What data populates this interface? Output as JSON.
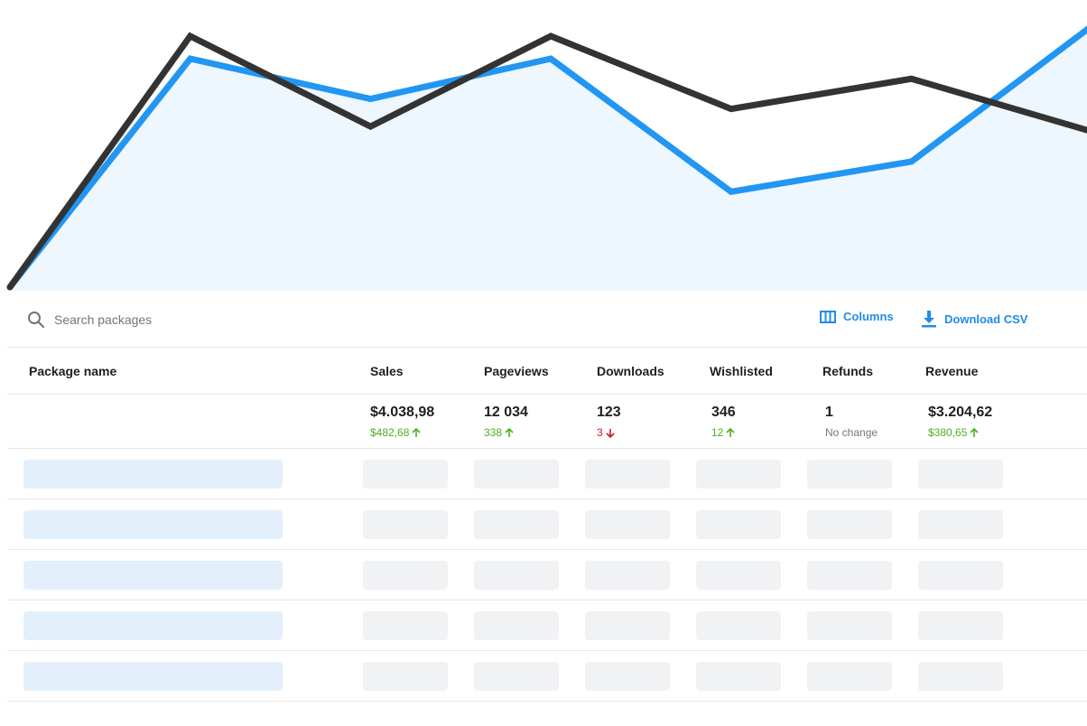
{
  "chart_data": {
    "type": "line",
    "x": [
      0,
      1,
      2,
      3,
      4,
      5,
      6
    ],
    "ylim": [
      0,
      100
    ],
    "series": [
      {
        "color": "#2196f3",
        "fill": "#eef6fe",
        "values": [
          0,
          91,
          75,
          91,
          38,
          50,
          104
        ]
      },
      {
        "color": "#333333",
        "values": [
          0,
          100,
          64,
          100,
          71,
          83,
          62
        ]
      }
    ]
  },
  "toolbar": {
    "search_placeholder": "Search packages",
    "search_icon": "search-icon",
    "columns_label": "Columns",
    "columns_icon": "columns-icon",
    "download_label": "Download CSV",
    "download_icon": "download-icon",
    "accent": "#1f8ce8"
  },
  "table": {
    "headers": {
      "name": "Package name",
      "sales": "Sales",
      "pageviews": "Pageviews",
      "downloads": "Downloads",
      "wishlisted": "Wishlisted",
      "refunds": "Refunds",
      "revenue": "Revenue"
    },
    "totals": {
      "sales": {
        "value": "$4.038,98",
        "delta": "$482,68",
        "trend": "up"
      },
      "pageviews": {
        "value": "12 034",
        "delta": "338",
        "trend": "up"
      },
      "downloads": {
        "value": "123",
        "delta": "3",
        "trend": "down"
      },
      "wishlisted": {
        "value": "346",
        "delta": "12",
        "trend": "up"
      },
      "refunds": {
        "value": "1",
        "delta": "No change",
        "trend": "none"
      },
      "revenue": {
        "value": "$3.204,62",
        "delta": "$380,65",
        "trend": "up"
      }
    },
    "loading_rows": 5,
    "colors": {
      "up": "#4caf1f",
      "down": "#d0191f",
      "skeleton": "#f1f2f4",
      "skeleton_name": "#e3f0fb"
    }
  }
}
